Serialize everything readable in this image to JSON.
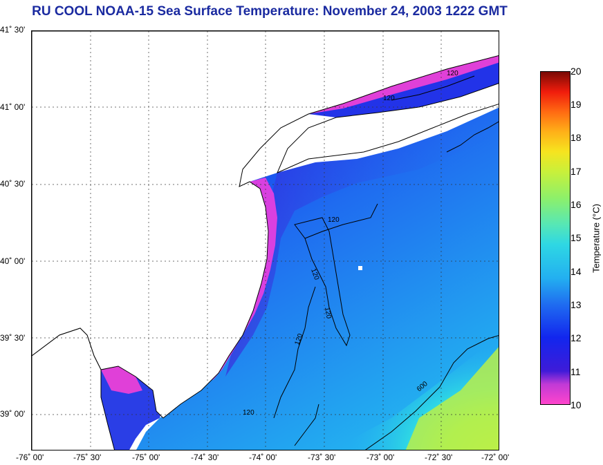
{
  "title": "RU COOL  NOAA-15  Sea Surface Temperature:  November 24, 2003 1222 GMT",
  "lat_labels": [
    "41˚ 30'",
    "41˚ 00'",
    "40˚ 30'",
    "40˚ 00'",
    "39˚ 30'",
    "39˚ 00'"
  ],
  "lon_labels": [
    "-76˚ 00'",
    "-75˚ 30'",
    "-75˚ 00'",
    "-74˚ 30'",
    "-74˚ 00'",
    "-73˚ 30'",
    "-73˚ 00'",
    "-72˚ 30'",
    "-72˚ 00'"
  ],
  "contours": [
    {
      "label": "120"
    },
    {
      "label": "120"
    },
    {
      "label": "120"
    },
    {
      "label": "120"
    },
    {
      "label": "120"
    },
    {
      "label": "120"
    },
    {
      "label": "120"
    },
    {
      "label": "600"
    }
  ],
  "colorbar": {
    "ticks": [
      "20",
      "19",
      "18",
      "17",
      "16",
      "15",
      "14",
      "13",
      "12",
      "11",
      "10"
    ],
    "label": "Temperature (°C)",
    "min": 10,
    "max": 20
  },
  "colors": {
    "title": "#1a2aa0",
    "land": "#ffffff",
    "coast": "#000000"
  }
}
